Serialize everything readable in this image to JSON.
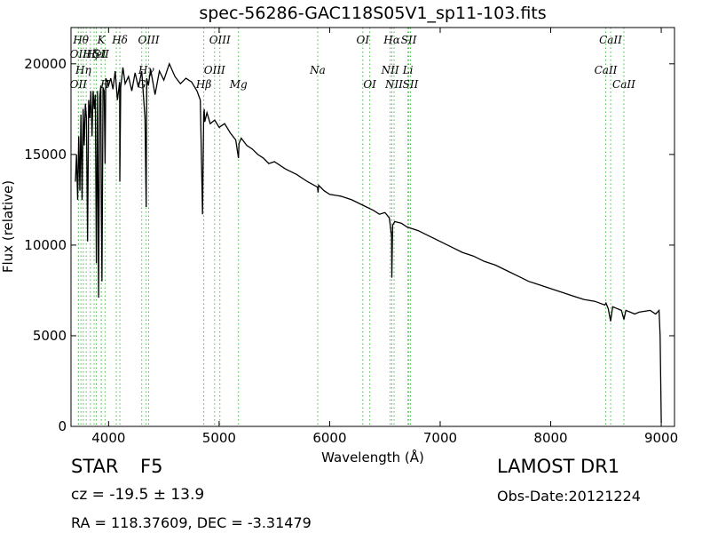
{
  "chart_data": {
    "type": "line",
    "title": "spec-56286-GAC118S05V1_sp11-103.fits",
    "xlabel": "Wavelength (Å)",
    "ylabel": "Flux (relative)",
    "xlim": [
      3660,
      9120
    ],
    "ylim": [
      0,
      22000
    ],
    "xticks": [
      4000,
      5000,
      6000,
      7000,
      8000,
      9000
    ],
    "xtick_labels": [
      "4000",
      "5000",
      "6000",
      "7000",
      "8000",
      "9000"
    ],
    "yticks": [
      0,
      5000,
      10000,
      15000,
      20000
    ],
    "ytick_labels": [
      "0",
      "5000",
      "10000",
      "15000",
      "20000"
    ],
    "grid": false,
    "series": [
      {
        "x": [
          3700,
          3710,
          3720,
          3730,
          3740,
          3750,
          3760,
          3770,
          3780,
          3790,
          3800,
          3810,
          3820,
          3830,
          3840,
          3850,
          3860,
          3870,
          3880,
          3890,
          3900,
          3910,
          3920,
          3930,
          3935,
          3940,
          3950,
          3960,
          3968,
          3975,
          3990,
          4000,
          4020,
          4040,
          4060,
          4080,
          4100,
          4102,
          4110,
          4130,
          4150,
          4180,
          4210,
          4240,
          4270,
          4300,
          4330,
          4340,
          4345,
          4360,
          4380,
          4420,
          4460,
          4500,
          4550,
          4600,
          4650,
          4700,
          4750,
          4800,
          4830,
          4850,
          4860,
          4865,
          4870,
          4890,
          4920,
          4960,
          5000,
          5050,
          5100,
          5150,
          5175,
          5180,
          5200,
          5250,
          5300,
          5350,
          5400,
          5450,
          5500,
          5600,
          5700,
          5800,
          5890,
          5895,
          5900,
          5950,
          6000,
          6100,
          6200,
          6300,
          6400,
          6450,
          6500,
          6540,
          6560,
          6563,
          6570,
          6590,
          6650,
          6700,
          6800,
          6900,
          7000,
          7100,
          7200,
          7300,
          7400,
          7500,
          7600,
          7700,
          7800,
          7900,
          8000,
          8100,
          8200,
          8300,
          8400,
          8490,
          8500,
          8520,
          8542,
          8560,
          8600,
          8640,
          8662,
          8680,
          8720,
          8760,
          8800,
          8850,
          8900,
          8950,
          8980,
          8990,
          9000
        ],
        "y": [
          13500,
          15000,
          12500,
          16000,
          13000,
          17200,
          12500,
          17500,
          15500,
          17800,
          17000,
          10200,
          18000,
          17000,
          18500,
          16000,
          18500,
          17500,
          18300,
          9000,
          18500,
          7100,
          18200,
          18800,
          12000,
          8000,
          18700,
          18500,
          14500,
          19200,
          19000,
          18800,
          19200,
          18600,
          19600,
          18000,
          19000,
          13500,
          18700,
          19800,
          18900,
          19300,
          18500,
          19500,
          18700,
          19600,
          17000,
          12100,
          19200,
          18800,
          19700,
          18300,
          19600,
          19100,
          20000,
          19300,
          18900,
          19200,
          19000,
          18500,
          18000,
          11700,
          17200,
          17500,
          16800,
          17300,
          16700,
          16900,
          16500,
          16700,
          16200,
          15800,
          14800,
          15600,
          15900,
          15500,
          15300,
          15000,
          14800,
          14500,
          14600,
          14200,
          13900,
          13500,
          13200,
          12900,
          13300,
          13000,
          12800,
          12700,
          12500,
          12200,
          11900,
          11700,
          11800,
          11500,
          10500,
          8200,
          11100,
          11300,
          11200,
          11000,
          10800,
          10500,
          10200,
          9900,
          9600,
          9400,
          9100,
          8900,
          8600,
          8300,
          8000,
          7800,
          7600,
          7400,
          7200,
          7000,
          6900,
          6700,
          6800,
          6500,
          5800,
          6600,
          6500,
          6400,
          5900,
          6400,
          6300,
          6200,
          6300,
          6350,
          6400,
          6200,
          6400,
          5000,
          200
        ]
      }
    ],
    "lines": [
      {
        "wl": 3727,
        "label": "OII",
        "row": 2
      },
      {
        "wl": 3727,
        "label": "OII",
        "row": 4
      },
      {
        "wl": 3750,
        "label": "Hθ",
        "row": 1
      },
      {
        "wl": 3771,
        "label": "Hη",
        "row": 3
      },
      {
        "wl": 3798,
        "label": "",
        "row": 0
      },
      {
        "wl": 3835,
        "label": "Hζ",
        "row": 2
      },
      {
        "wl": 3869,
        "label": "",
        "row": 0
      },
      {
        "wl": 3889,
        "label": "HeI",
        "row": 2
      },
      {
        "wl": 3934,
        "label": "K",
        "row": 1
      },
      {
        "wl": 3933,
        "label": "SII",
        "row": 2
      },
      {
        "wl": 3968,
        "label": "H",
        "row": 4
      },
      {
        "wl": 4070,
        "label": "",
        "row": 0
      },
      {
        "wl": 4102,
        "label": "Hδ",
        "row": 1
      },
      {
        "wl": 4300,
        "label": "G",
        "row": 4
      },
      {
        "wl": 4340,
        "label": "Hγ",
        "row": 3
      },
      {
        "wl": 4363,
        "label": "OIII",
        "row": 1
      },
      {
        "wl": 4861,
        "label": "Hβ",
        "row": 4
      },
      {
        "wl": 4959,
        "label": "OIII",
        "row": 3
      },
      {
        "wl": 5007,
        "label": "OIII",
        "row": 1
      },
      {
        "wl": 5175,
        "label": "Mg",
        "row": 4
      },
      {
        "wl": 5892,
        "label": "Na",
        "row": 3
      },
      {
        "wl": 6300,
        "label": "OI",
        "row": 1
      },
      {
        "wl": 6363,
        "label": "OI",
        "row": 4
      },
      {
        "wl": 6548,
        "label": "NII",
        "row": 3
      },
      {
        "wl": 6563,
        "label": "Hα",
        "row": 1
      },
      {
        "wl": 6583,
        "label": "NII",
        "row": 4
      },
      {
        "wl": 6708,
        "label": "Li",
        "row": 3
      },
      {
        "wl": 6716,
        "label": "SII",
        "row": 1
      },
      {
        "wl": 6731,
        "label": "SII",
        "row": 4
      },
      {
        "wl": 8498,
        "label": "CaII",
        "row": 3
      },
      {
        "wl": 8542,
        "label": "CaII",
        "row": 1
      },
      {
        "wl": 8662,
        "label": "CaII",
        "row": 4
      }
    ]
  },
  "spectral_class": "STAR",
  "subclass": "F5",
  "survey": "LAMOST DR1",
  "redshift": "cz = -19.5 ± 13.9",
  "obs_date": "Obs-Date:20121224",
  "coordinates": "RA = 118.37609, DEC = -3.31479",
  "colors": {
    "spectrum": "#000000",
    "line_markers": "#44bb44"
  }
}
